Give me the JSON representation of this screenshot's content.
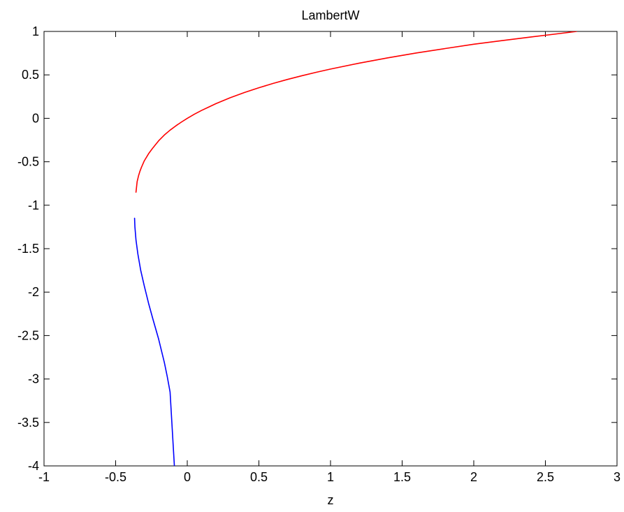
{
  "chart_data": {
    "type": "line",
    "title": "LambertW",
    "xlabel": "z",
    "ylabel": "",
    "xlim": [
      -1,
      3
    ],
    "ylim": [
      -4,
      1
    ],
    "xticks": [
      -1,
      -0.5,
      0,
      0.5,
      1,
      1.5,
      2,
      2.5,
      3
    ],
    "xtick_labels": [
      "-1",
      "-0.5",
      "0",
      "0.5",
      "1",
      "1.5",
      "2",
      "2.5",
      "3"
    ],
    "yticks": [
      -4,
      -3.5,
      -3,
      -2.5,
      -2,
      -1.5,
      -1,
      -0.5,
      0,
      0.5,
      1
    ],
    "ytick_labels": [
      "-4",
      "-3.5",
      "-3",
      "-2.5",
      "-2",
      "-1.5",
      "-1",
      "-0.5",
      "0",
      "0.5",
      "1"
    ],
    "grid": false,
    "legend": "none",
    "series": [
      {
        "color": "#ff0000",
        "x": [
          -0.358,
          -0.35,
          -0.34,
          -0.33,
          -0.32,
          -0.3,
          -0.27,
          -0.24,
          -0.2,
          -0.16,
          -0.12,
          -0.08,
          -0.04,
          0.0,
          0.05,
          0.1,
          0.15,
          0.2,
          0.3,
          0.4,
          0.5,
          0.6,
          0.7,
          0.8,
          0.9,
          1.0,
          1.2,
          1.4,
          1.6,
          1.8,
          2.0,
          2.2,
          2.4,
          2.6,
          2.718
        ],
        "y": [
          -0.85,
          -0.729,
          -0.66,
          -0.607,
          -0.564,
          -0.489,
          -0.407,
          -0.34,
          -0.259,
          -0.192,
          -0.136,
          -0.087,
          -0.042,
          0.0,
          0.048,
          0.091,
          0.13,
          0.169,
          0.237,
          0.298,
          0.352,
          0.402,
          0.448,
          0.49,
          0.53,
          0.567,
          0.635,
          0.696,
          0.752,
          0.803,
          0.853,
          0.895,
          0.936,
          0.976,
          1.0
        ]
      },
      {
        "color": "#0000ff",
        "x": [
          -0.3679,
          -0.3655,
          -0.358,
          -0.345,
          -0.325,
          -0.3,
          -0.27,
          -0.24,
          -0.2,
          -0.16,
          -0.14,
          -0.12,
          -0.09
        ],
        "y": [
          -1.15,
          -1.25,
          -1.4,
          -1.56,
          -1.75,
          -1.93,
          -2.13,
          -2.31,
          -2.54,
          -2.81,
          -2.97,
          -3.15,
          -4.0
        ]
      }
    ]
  }
}
